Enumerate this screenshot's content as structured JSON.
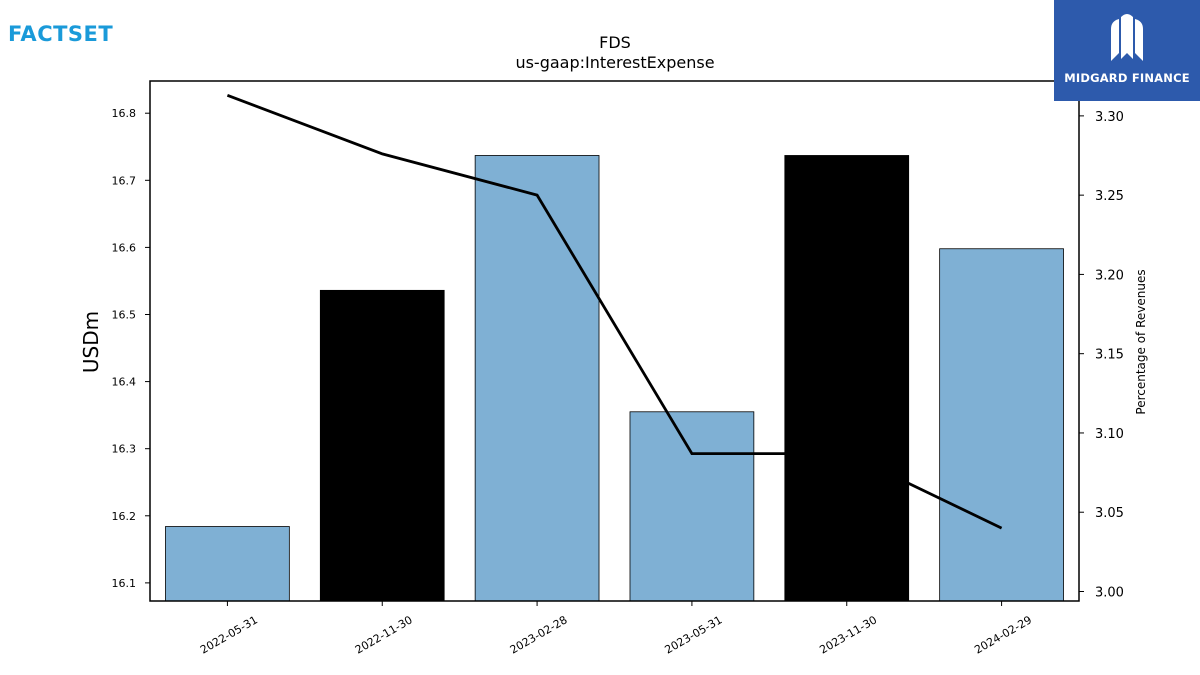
{
  "branding": {
    "left_logo": "FACTSET",
    "right_logo": "MIDGARD FINANCE",
    "left_color": "#1a9ad9",
    "right_bg_color": "#2d5aac",
    "right_icon": "midgard-m-icon"
  },
  "chart_data": {
    "type": "bar",
    "title": "FDS",
    "subtitle": "us-gaap:InterestExpense",
    "categories": [
      "2022-05-31",
      "2022-11-30",
      "2023-02-28",
      "2023-05-31",
      "2023-11-30",
      "2024-02-29"
    ],
    "series": [
      {
        "values": [
          16.184,
          16.536,
          16.737,
          16.355,
          16.737,
          16.598
        ],
        "colors": [
          "#7fb0d4",
          "#000000",
          "#7fb0d4",
          "#7fb0d4",
          "#000000",
          "#7fb0d4"
        ],
        "axis": "left"
      },
      {
        "type": "line",
        "values": [
          3.313,
          3.276,
          3.25,
          3.087,
          3.087,
          3.04
        ],
        "color": "#000000",
        "axis": "right"
      }
    ],
    "ylabel": "USDm",
    "y2label": "Percentage of Revenues",
    "ylim": [
      16.073,
      16.848
    ],
    "y2lim": [
      2.994,
      3.322
    ],
    "yticks": [
      "16.1",
      "16.2",
      "16.3",
      "16.4",
      "16.5",
      "16.6",
      "16.7",
      "16.8"
    ],
    "y2ticks": [
      "3.00",
      "3.05",
      "3.10",
      "3.15",
      "3.20",
      "3.25",
      "3.30"
    ],
    "grid": false,
    "legend": "none"
  }
}
